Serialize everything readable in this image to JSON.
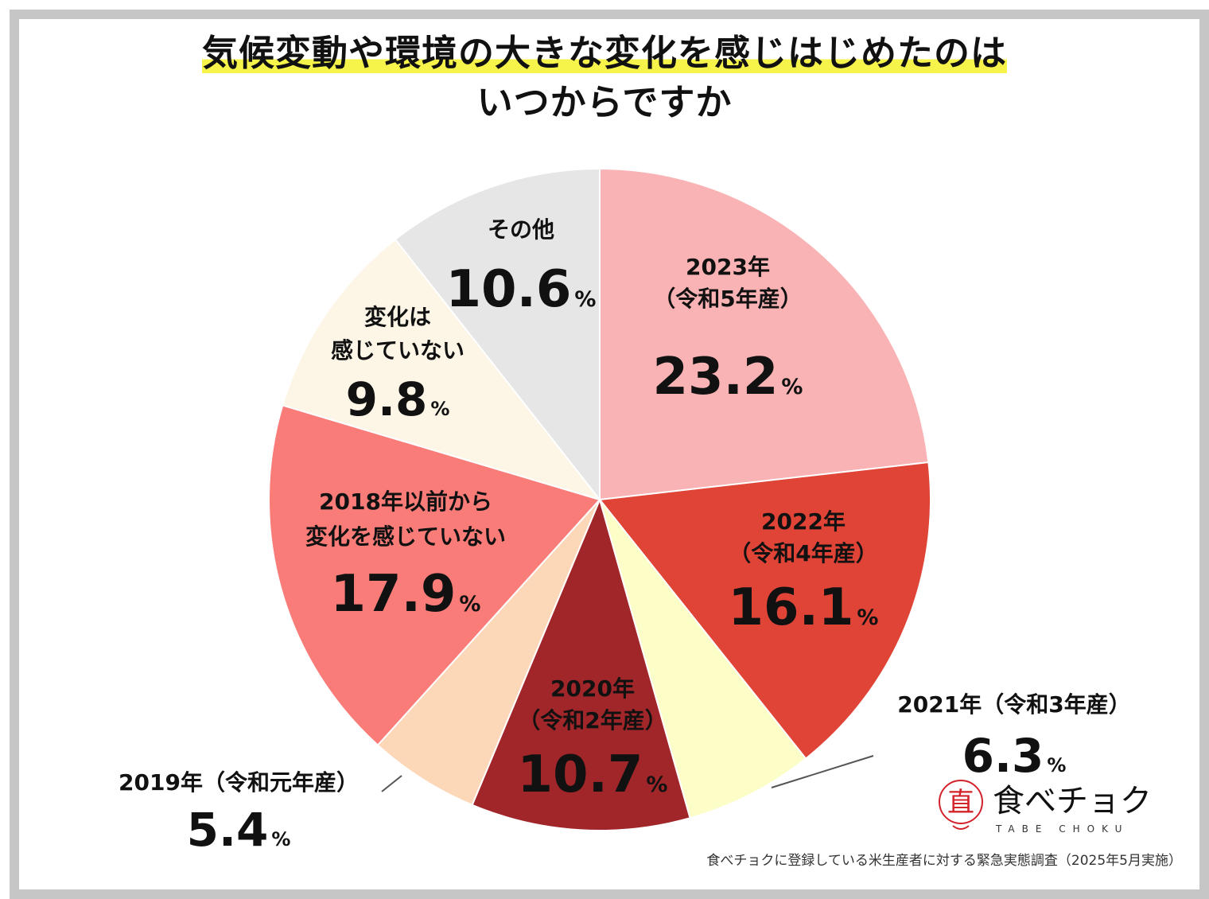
{
  "title": {
    "line1": "気候変動や環境の大きな変化を感じはじめたのは",
    "line2": "いつからですか"
  },
  "chart_data": {
    "type": "pie",
    "title": "気候変動や環境の大きな変化を感じはじめたのはいつからですか",
    "slices": [
      {
        "label": "2023年（令和5年産）",
        "lines": [
          "2023年",
          "（令和5年産）"
        ],
        "value": 23.2,
        "color": "#f9b3b4"
      },
      {
        "label": "2022年（令和4年産）",
        "lines": [
          "2022年",
          "（令和4年産）"
        ],
        "value": 16.1,
        "color": "#e04437"
      },
      {
        "label": "2021年（令和3年産）",
        "lines": [
          "2021年（令和3年産）"
        ],
        "value": 6.3,
        "color": "#fdfdc7"
      },
      {
        "label": "2020年（令和2年産）",
        "lines": [
          "2020年",
          "（令和2年産）"
        ],
        "value": 10.7,
        "color": "#a1262a"
      },
      {
        "label": "2019年（令和元年産）",
        "lines": [
          "2019年（令和元年産）"
        ],
        "value": 5.4,
        "color": "#fdd8b8"
      },
      {
        "label": "2018年以前から変化を感じていない",
        "lines": [
          "2018年以前から",
          "変化を感じていない"
        ],
        "value": 17.9,
        "color": "#f97c78"
      },
      {
        "label": "変化は感じていない",
        "lines": [
          "変化は",
          "感じていない"
        ],
        "value": 9.8,
        "color": "#fdf5e6"
      },
      {
        "label": "その他",
        "lines": [
          "その他"
        ],
        "value": 10.6,
        "color": "#e6e6e6"
      }
    ],
    "unit": "%"
  },
  "source_note": "食べチョクに登録している米生産者に対する緊急実態調査（2025年5月実施）",
  "logo": {
    "text": "食べチョク",
    "sub": "TABE CHOKU",
    "color": "#d3232a"
  }
}
